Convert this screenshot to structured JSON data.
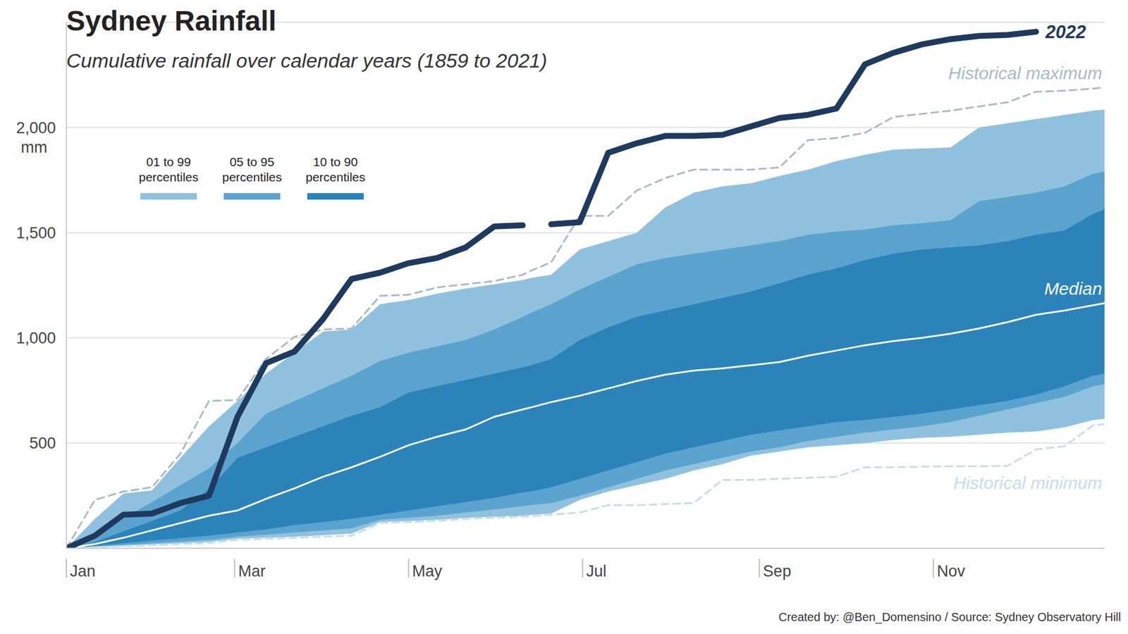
{
  "chart_data": {
    "type": "area",
    "title": "Sydney Rainfall",
    "subtitle": "Cumulative rainfall over calendar years (1859 to 2021)",
    "source": "Created by: @Ben_Domensino / Source: Sydney Observatory Hill",
    "y_label": "mm",
    "legend": "upper left",
    "grid": true,
    "x": [
      1,
      11,
      21,
      31,
      41,
      51,
      61,
      71,
      81,
      91,
      101,
      111,
      121,
      131,
      141,
      151,
      161,
      164,
      171,
      181,
      191,
      201,
      211,
      221,
      231,
      241,
      251,
      261,
      271,
      281,
      291,
      301,
      311,
      321,
      331,
      341,
      351,
      361,
      365
    ],
    "xlim": [
      1,
      365
    ],
    "xticks": [
      {
        "value": 1,
        "label": "Jan"
      },
      {
        "value": 60,
        "label": "Mar"
      },
      {
        "value": 121,
        "label": "May"
      },
      {
        "value": 182,
        "label": "Jul"
      },
      {
        "value": 244,
        "label": "Sep"
      },
      {
        "value": 305,
        "label": "Nov"
      }
    ],
    "ylim": [
      0,
      2500
    ],
    "yticks": [
      500,
      {
        "value": 1000,
        "label": "1,000"
      },
      {
        "value": 1500,
        "label": "1,500"
      },
      {
        "value": 2000,
        "label": "2,000"
      }
    ],
    "series": [
      {
        "name": "01 to 99 percentiles",
        "color": "#8fc1de",
        "low": [
          0,
          6,
          12,
          18,
          24,
          30,
          45,
          50,
          55,
          62,
          70,
          125,
          130,
          135,
          145,
          150,
          155,
          158,
          165,
          230,
          270,
          300,
          330,
          370,
          400,
          440,
          460,
          480,
          490,
          500,
          515,
          525,
          530,
          540,
          550,
          555,
          575,
          610,
          615
        ],
        "high": [
          0,
          140,
          260,
          275,
          430,
          580,
          700,
          830,
          930,
          1030,
          1040,
          1160,
          1180,
          1210,
          1235,
          1255,
          1275,
          1285,
          1300,
          1420,
          1460,
          1500,
          1620,
          1690,
          1720,
          1735,
          1770,
          1800,
          1840,
          1870,
          1895,
          1900,
          1905,
          2000,
          2020,
          2040,
          2060,
          2080,
          2085
        ]
      },
      {
        "name": "05 to 95 percentiles",
        "color": "#5ba3cf",
        "low": [
          0,
          8,
          16,
          24,
          32,
          40,
          55,
          65,
          75,
          85,
          95,
          135,
          145,
          155,
          170,
          185,
          200,
          205,
          215,
          250,
          290,
          330,
          370,
          400,
          430,
          460,
          480,
          510,
          530,
          550,
          565,
          580,
          600,
          630,
          660,
          690,
          720,
          770,
          780
        ],
        "high": [
          0,
          60,
          140,
          220,
          300,
          380,
          500,
          640,
          700,
          760,
          820,
          890,
          930,
          960,
          990,
          1040,
          1100,
          1120,
          1160,
          1230,
          1290,
          1350,
          1380,
          1400,
          1420,
          1440,
          1460,
          1490,
          1505,
          1515,
          1535,
          1545,
          1560,
          1650,
          1670,
          1690,
          1720,
          1780,
          1790
        ]
      },
      {
        "name": "10 to 90 percentiles",
        "color": "#2b83ba",
        "low": [
          0,
          12,
          24,
          36,
          48,
          60,
          75,
          90,
          110,
          125,
          140,
          160,
          180,
          200,
          220,
          240,
          265,
          270,
          290,
          330,
          370,
          410,
          450,
          480,
          510,
          540,
          560,
          580,
          600,
          610,
          625,
          640,
          660,
          680,
          700,
          730,
          770,
          820,
          830
        ],
        "high": [
          0,
          30,
          80,
          130,
          180,
          280,
          430,
          480,
          530,
          580,
          630,
          670,
          740,
          770,
          800,
          830,
          860,
          870,
          900,
          990,
          1050,
          1100,
          1130,
          1160,
          1190,
          1220,
          1260,
          1300,
          1330,
          1370,
          1400,
          1420,
          1430,
          1440,
          1460,
          1490,
          1510,
          1590,
          1610
        ]
      },
      {
        "name": "Historical maximum",
        "type": "line",
        "line_style": "dashed",
        "color": "#a9b9c7",
        "values": [
          0,
          230,
          270,
          290,
          450,
          700,
          705,
          900,
          1005,
          1040,
          1045,
          1200,
          1205,
          1240,
          1255,
          1270,
          1300,
          1320,
          1360,
          1580,
          1580,
          1700,
          1760,
          1800,
          1800,
          1800,
          1810,
          1940,
          1950,
          1975,
          2050,
          2065,
          2080,
          2100,
          2120,
          2170,
          2175,
          2185,
          2190
        ]
      },
      {
        "name": "Historical minimum",
        "type": "line",
        "line_style": "dashed",
        "color": "#c5dcea",
        "values": [
          0,
          5,
          10,
          15,
          20,
          25,
          40,
          45,
          50,
          55,
          60,
          120,
          125,
          130,
          140,
          145,
          150,
          152,
          160,
          170,
          205,
          205,
          210,
          215,
          325,
          325,
          330,
          335,
          340,
          385,
          385,
          388,
          390,
          390,
          392,
          470,
          485,
          585,
          590
        ]
      },
      {
        "name": "Median",
        "type": "line",
        "color": "#ffffff",
        "values": [
          0,
          20,
          50,
          85,
          120,
          155,
          180,
          235,
          285,
          340,
          385,
          435,
          490,
          530,
          565,
          625,
          660,
          670,
          695,
          725,
          760,
          795,
          825,
          845,
          855,
          870,
          885,
          915,
          940,
          965,
          985,
          1000,
          1020,
          1045,
          1075,
          1110,
          1130,
          1155,
          1165
        ]
      },
      {
        "name": "2022",
        "type": "line",
        "color": "#1f3a5f",
        "values": [
          0,
          60,
          160,
          165,
          215,
          250,
          625,
          880,
          935,
          1090,
          1280,
          1310,
          1355,
          1380,
          1430,
          1530,
          1535,
          null,
          1540,
          1550,
          1880,
          1925,
          1960,
          1960,
          1965,
          2005,
          2045,
          2060,
          2090,
          2300,
          2355,
          2395,
          2420,
          2435,
          2440,
          2455,
          null,
          null,
          null
        ]
      }
    ]
  }
}
